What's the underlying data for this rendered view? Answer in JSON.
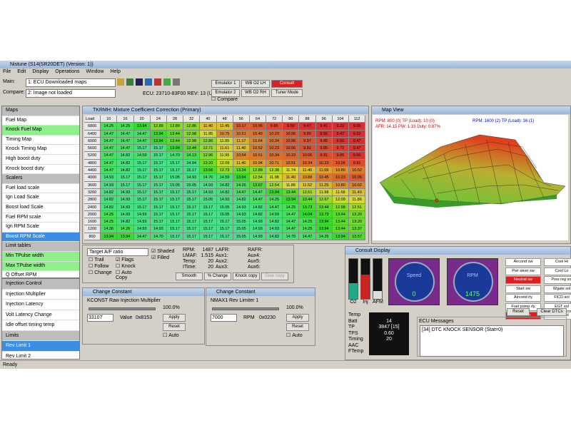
{
  "window": {
    "title": "Nistune (S14(SR20DET) (Version: 1))",
    "menu": [
      "File",
      "Edit",
      "Display",
      "Operations",
      "Window",
      "Help"
    ],
    "status": "Ready"
  },
  "toolbar": {
    "main_label": "Main:",
    "main_value": "1: ECU Downloaded maps",
    "compare_label": "Compare:",
    "compare_value": "2: Image not loaded",
    "ecu": "ECU: 23710-83F00 REV: 13 (U)",
    "buttons": [
      "Emulator 1",
      "WB O2 LH",
      "Consult",
      "Emulator 2",
      "WB O2 RH",
      "Tuner Mode"
    ],
    "compare_check": "Compare"
  },
  "sidebar": [
    {
      "label": "Maps",
      "header": true
    },
    {
      "label": "Fuel Map"
    },
    {
      "label": "Knock Fuel Map",
      "state": "active"
    },
    {
      "label": "Timing Map"
    },
    {
      "label": "Knock Timing Map"
    },
    {
      "label": "High boost duty"
    },
    {
      "label": "Knock boost duty"
    },
    {
      "label": "Scalers",
      "header": true
    },
    {
      "label": "Fuel load scale"
    },
    {
      "label": "Ign Load Scale"
    },
    {
      "label": "Boost load Scale"
    },
    {
      "label": "Fuel RPM scale"
    },
    {
      "label": "Ign RPM Scale"
    },
    {
      "label": "Boost RPM Scale",
      "state": "selected"
    },
    {
      "label": "Limit tables",
      "header": true
    },
    {
      "label": "Min TPulse width",
      "state": "active"
    },
    {
      "label": "Max TPulse width",
      "state": "active"
    },
    {
      "label": "Q Offset RPM"
    }
  ],
  "sidebar2": [
    {
      "label": "Injection Control",
      "header": true
    },
    {
      "label": "Injection Multiplier"
    },
    {
      "label": "Injection Latency"
    },
    {
      "label": "Volt Latency Change"
    },
    {
      "label": "Idle offset timing temp"
    },
    {
      "label": "Limits",
      "header": true
    },
    {
      "label": "Rev Limit 1",
      "state": "selected"
    },
    {
      "label": "Rev Limit 2"
    }
  ],
  "map_table": {
    "title": "TKRMH: Mixture Coefficient Correction (Primary)",
    "corner": "Load",
    "loads": [
      10,
      16,
      20,
      24,
      28,
      32,
      40,
      48,
      56,
      64,
      72,
      80,
      88,
      96,
      104,
      112
    ],
    "rpms": [
      6800,
      6400,
      6000,
      5600,
      5200,
      4800,
      4400,
      4000,
      3600,
      3200,
      2800,
      2400,
      2000,
      1600,
      1200,
      800
    ],
    "cells": [
      [
        "14.25",
        "14.25",
        "13.94",
        "12.89",
        "12.89",
        "12.86",
        "11.40",
        "11.45",
        "10.17",
        "10.06",
        "9.85",
        "9.59",
        "9.47",
        "9.41",
        "9.22",
        "9.06"
      ],
      [
        "14.47",
        "14.47",
        "14.47",
        "13.94",
        "13.44",
        "12.98",
        "11.95",
        "10.75",
        "10.51",
        "10.40",
        "10.23",
        "10.06",
        "9.85",
        "9.56",
        "9.47",
        "9.22"
      ],
      [
        "14.47",
        "14.47",
        "14.47",
        "13.94",
        "13.44",
        "12.98",
        "12.86",
        "11.95",
        "11.17",
        "10.64",
        "10.34",
        "10.06",
        "9.97",
        "9.85",
        "9.56",
        "9.47"
      ],
      [
        "14.47",
        "14.47",
        "15.17",
        "15.17",
        "13.94",
        "13.44",
        "12.71",
        "11.61",
        "11.40",
        "10.52",
        "10.23",
        "10.06",
        "9.91",
        "9.85",
        "9.72",
        "9.47"
      ],
      [
        "14.47",
        "14.82",
        "14.59",
        "15.17",
        "14.70",
        "14.13",
        "12.96",
        "11.95",
        "10.64",
        "10.51",
        "10.34",
        "10.23",
        "10.06",
        "9.91",
        "9.85",
        "9.56"
      ],
      [
        "14.47",
        "14.82",
        "15.17",
        "15.17",
        "15.17",
        "14.94",
        "13.20",
        "12.09",
        "11.40",
        "10.94",
        "10.71",
        "10.51",
        "10.34",
        "10.23",
        "10.06",
        "9.91"
      ],
      [
        "14.47",
        "14.82",
        "15.17",
        "15.17",
        "15.17",
        "15.17",
        "13.66",
        "12.73",
        "13.34",
        "12.89",
        "12.38",
        "11.74",
        "11.40",
        "11.06",
        "10.80",
        "10.52"
      ],
      [
        "14.93",
        "15.17",
        "15.17",
        "15.17",
        "15.05",
        "14.93",
        "14.70",
        "14.59",
        "13.94",
        "12.54",
        "11.98",
        "11.40",
        "10.88",
        "10.45",
        "10.23",
        "10.06"
      ],
      [
        "14.93",
        "15.17",
        "15.17",
        "15.17",
        "15.05",
        "15.05",
        "14.93",
        "14.82",
        "14.26",
        "13.67",
        "12.54",
        "11.86",
        "11.52",
        "11.25",
        "10.80",
        "10.62"
      ],
      [
        "14.82",
        "14.93",
        "15.17",
        "15.17",
        "15.17",
        "15.17",
        "14.93",
        "14.82",
        "14.47",
        "14.47",
        "13.94",
        "13.44",
        "12.51",
        "11.98",
        "11.68",
        "11.40"
      ],
      [
        "14.82",
        "14.93",
        "15.17",
        "15.17",
        "15.17",
        "15.17",
        "15.05",
        "14.93",
        "14.82",
        "14.47",
        "14.25",
        "13.94",
        "13.44",
        "12.67",
        "12.09",
        "11.86"
      ],
      [
        "14.82",
        "14.93",
        "15.17",
        "15.17",
        "15.17",
        "15.17",
        "15.17",
        "15.05",
        "14.93",
        "14.82",
        "14.47",
        "14.25",
        "13.73",
        "13.44",
        "12.98",
        "12.51"
      ],
      [
        "14.25",
        "14.93",
        "14.93",
        "15.17",
        "15.17",
        "15.17",
        "15.17",
        "15.05",
        "14.93",
        "14.82",
        "14.59",
        "14.47",
        "14.04",
        "13.73",
        "13.44",
        "13.20"
      ],
      [
        "14.25",
        "14.82",
        "14.93",
        "15.17",
        "15.17",
        "15.17",
        "15.17",
        "15.17",
        "15.05",
        "14.93",
        "14.82",
        "14.47",
        "14.25",
        "13.94",
        "13.44",
        "13.20"
      ],
      [
        "14.36",
        "14.26",
        "14.93",
        "14.93",
        "15.17",
        "15.17",
        "15.17",
        "15.17",
        "15.05",
        "14.93",
        "14.93",
        "14.47",
        "14.25",
        "13.94",
        "13.44",
        "13.37"
      ],
      [
        "13.94",
        "13.94",
        "14.47",
        "14.70",
        "15.17",
        "15.17",
        "15.17",
        "15.17",
        "15.05",
        "14.93",
        "14.82",
        "14.70",
        "14.47",
        "14.25",
        "13.94",
        "13.57"
      ]
    ]
  },
  "map_view": {
    "title": "Map View",
    "line1": "RPM: 800 (0)  TP (Load): 10 (0)",
    "line2": "AFR: 14.15  PW: 1.33  Duty: 0.87%",
    "line3": "RPM: 1600 (2)  TP (Load): 16 (1)"
  },
  "controls": {
    "dropdown": "Target A/F ratio",
    "checks": [
      {
        "label": "Trail"
      },
      {
        "label": "Flags",
        "checked": true
      },
      {
        "label": "Follow"
      },
      {
        "label": "Knock"
      },
      {
        "label": "Change"
      },
      {
        "label": "Auto Copy"
      }
    ],
    "view_checks": [
      {
        "label": "Shaded",
        "checked": true
      },
      {
        "label": "Filled",
        "checked": true
      }
    ],
    "readouts": [
      {
        "label": "RPM:",
        "value": "1487"
      },
      {
        "label": "LMAF:",
        "value": "1.515"
      },
      {
        "label": "Temp:",
        "value": "20"
      },
      {
        "label": "ITime:",
        "value": "20"
      }
    ],
    "aux1": [
      "LAFR:",
      "Aux1:",
      "Aux2:",
      "Aux3:"
    ],
    "aux2": [
      "RAFR:",
      "Aux4:",
      "Aux5:",
      "Aux6:"
    ],
    "buttons": [
      "Smooth",
      "% Change",
      "Knock copy",
      "Gear copy"
    ]
  },
  "constants": [
    {
      "title": "Change Constant",
      "name": "KCONST Raw Injection Multiplier",
      "percent": "100.0%",
      "input": "33107",
      "unit": "Value",
      "hex": "0x8153",
      "apply": "Apply",
      "reset": "Reset",
      "auto": "Auto"
    },
    {
      "title": "Change Constant",
      "name": "NMAX1 Rev Limiter 1",
      "percent": "100.0%",
      "input": "7000",
      "unit": "RPM",
      "hex": "0x0230",
      "apply": "Apply",
      "reset": "Reset",
      "auto": "Auto"
    }
  ],
  "consult": {
    "title": "Consult Display",
    "bars": [
      "O2",
      "Inj",
      "AFM"
    ],
    "gauges": [
      {
        "label": "Speed",
        "value": "0"
      },
      {
        "label": "RPM",
        "value": "1475"
      }
    ],
    "rows": [
      {
        "label": "Temp"
      },
      {
        "label": "Batt",
        "value": "14"
      },
      {
        "label": "TP",
        "value": "3847 [15]"
      },
      {
        "label": "TPS",
        "value": "0.60"
      },
      {
        "label": "Timing",
        "value": "20"
      },
      {
        "label": "AAC"
      },
      {
        "label": "FTemp"
      }
    ],
    "switches": [
      {
        "label": "Aircond sw"
      },
      {
        "label": "Pwr steer sw"
      },
      {
        "label": "Neutral sw",
        "on": true
      },
      {
        "label": "Start sw"
      },
      {
        "label": "Aircond rly"
      },
      {
        "label": "Fuel pump rly"
      },
      {
        "label": "TPS idle",
        "on": true
      }
    ],
    "solenoids": [
      "Cool Hi",
      "Cool Lo",
      "Pres reg sol",
      "Wgate sol",
      "FICD sol",
      "EGT sol",
      "VTC sol"
    ],
    "reset": "Reset",
    "clear": "Clear DTCs",
    "messages_title": "ECU Messages",
    "message": "[34] DTC KNOCK SENSOR (Stat=0)"
  }
}
